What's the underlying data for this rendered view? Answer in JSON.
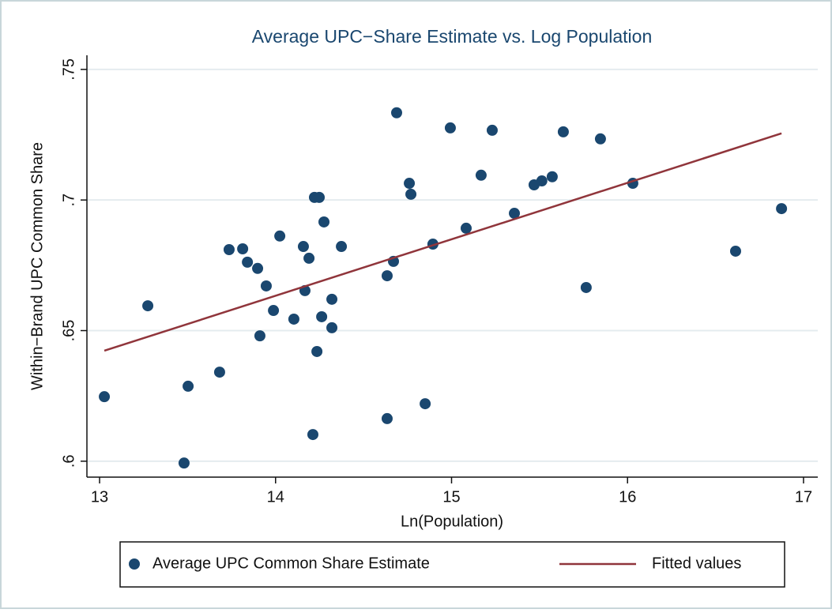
{
  "chart_data": {
    "type": "scatter",
    "title": "Average UPC−Share Estimate vs. Log Population",
    "x_label": "Ln(Population)",
    "y_label": "Within−Brand UPC Common Share",
    "xlim": [
      12.928,
      17.081
    ],
    "ylim": [
      0.5939,
      0.7554
    ],
    "xticks": [
      13,
      14,
      15,
      16,
      17
    ],
    "yticks": [
      {
        "value": 0.6,
        "label": ".6"
      },
      {
        "value": 0.65,
        "label": ".65"
      },
      {
        "value": 0.7,
        "label": ".7"
      },
      {
        "value": 0.75,
        "label": ".75"
      }
    ],
    "grid": true,
    "legend": "bottom",
    "series": [
      {
        "name": "Average UPC Common Share Estimate",
        "color": "#1a476f",
        "type": "scatter",
        "x": [
          13.027,
          13.274,
          13.48,
          13.503,
          13.682,
          13.736,
          13.813,
          13.84,
          13.898,
          13.911,
          13.947,
          13.988,
          14.024,
          14.104,
          14.221,
          14.248,
          14.158,
          14.167,
          14.19,
          14.212,
          14.235,
          14.262,
          14.275,
          14.32,
          14.32,
          14.374,
          14.634,
          14.634,
          14.67,
          14.688,
          14.76,
          14.769,
          14.85,
          14.894,
          14.993,
          15.083,
          15.168,
          15.231,
          15.357,
          15.469,
          15.513,
          15.572,
          15.635,
          15.765,
          15.846,
          16.03,
          16.614,
          16.875
        ],
        "values": [
          0.6247,
          0.6595,
          0.5993,
          0.6287,
          0.6341,
          0.681,
          0.6813,
          0.6762,
          0.6738,
          0.648,
          0.6671,
          0.6577,
          0.6862,
          0.6544,
          0.701,
          0.701,
          0.6822,
          0.6653,
          0.6777,
          0.6102,
          0.642,
          0.6553,
          0.6916,
          0.662,
          0.6511,
          0.6822,
          0.671,
          0.6163,
          0.6765,
          0.7334,
          0.7064,
          0.7022,
          0.622,
          0.6831,
          0.7276,
          0.6892,
          0.7095,
          0.7267,
          0.6949,
          0.7058,
          0.7073,
          0.7089,
          0.7261,
          0.6665,
          0.7234,
          0.7064,
          0.6804,
          0.6967
        ]
      },
      {
        "name": "Fitted values",
        "color": "#90353b",
        "type": "line",
        "x": [
          13.027,
          16.875
        ],
        "values": [
          0.6423,
          0.7255
        ]
      }
    ]
  }
}
